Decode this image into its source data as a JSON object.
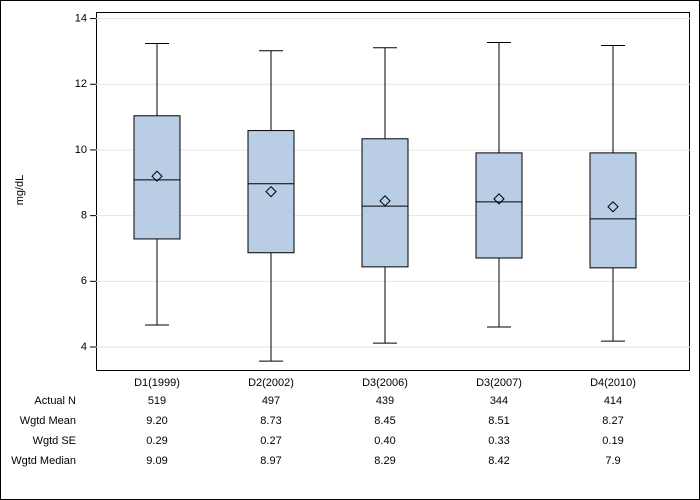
{
  "chart_data": {
    "type": "box",
    "ylabel": "mg/dL",
    "categories": [
      "D1(1999)",
      "D2(2002)",
      "D3(2006)",
      "D3(2007)",
      "D4(2010)"
    ],
    "whisker_high": [
      13.24,
      13.02,
      13.11,
      13.27,
      13.18
    ],
    "q3": [
      11.04,
      10.59,
      10.34,
      9.91,
      9.91
    ],
    "median": [
      9.09,
      8.97,
      8.29,
      8.42,
      7.9
    ],
    "q1": [
      7.29,
      6.87,
      6.44,
      6.71,
      6.41
    ],
    "whisker_low": [
      4.67,
      3.57,
      4.12,
      4.61,
      4.18
    ],
    "mean": [
      9.2,
      8.73,
      8.45,
      8.51,
      8.27
    ],
    "color": "#b9cde5",
    "ylim": [
      3.3,
      14.2
    ],
    "yticks": [
      4,
      6,
      8,
      10,
      12,
      14
    ],
    "grid": true,
    "table": [
      {
        "label": "Actual N",
        "values": [
          "519",
          "497",
          "439",
          "344",
          "414"
        ]
      },
      {
        "label": "Wgtd Mean",
        "values": [
          "9.20",
          "8.73",
          "8.45",
          "8.51",
          "8.27"
        ]
      },
      {
        "label": "Wgtd SE",
        "values": [
          "0.29",
          "0.27",
          "0.40",
          "0.33",
          "0.19"
        ]
      },
      {
        "label": "Wgtd Median",
        "values": [
          "9.09",
          "8.97",
          "8.29",
          "8.42",
          "7.9"
        ]
      }
    ]
  }
}
